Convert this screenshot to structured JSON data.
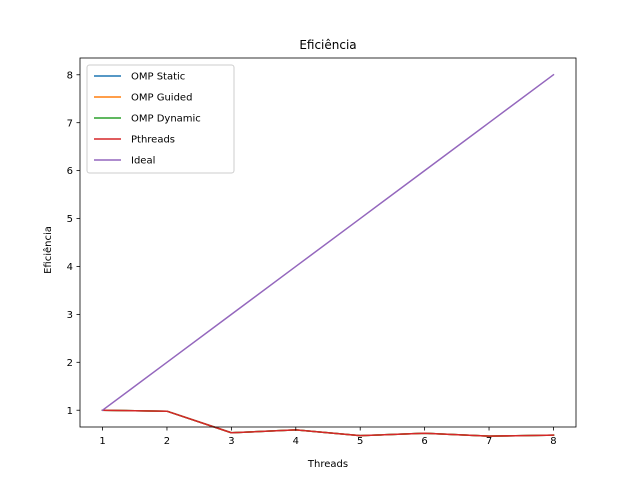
{
  "chart_data": {
    "type": "line",
    "title": "Eficiência",
    "xlabel": "Threads",
    "ylabel": "Eficiência",
    "x": [
      1,
      2,
      3,
      4,
      5,
      6,
      7,
      8
    ],
    "xticks": [
      "1",
      "2",
      "3",
      "4",
      "5",
      "6",
      "7",
      "8"
    ],
    "yticks": [
      "1",
      "2",
      "3",
      "4",
      "5",
      "6",
      "7",
      "8"
    ],
    "xlim": [
      0.65,
      8.35
    ],
    "ylim": [
      0.65,
      8.35
    ],
    "grid": false,
    "legend_position": "top-left",
    "series": [
      {
        "name": "OMP Static",
        "color": "#1f77b4",
        "values": [
          1.0,
          0.98,
          0.53,
          0.59,
          0.47,
          0.52,
          0.46,
          0.48
        ]
      },
      {
        "name": "OMP Guided",
        "color": "#ff7f0e",
        "values": [
          1.0,
          0.98,
          0.53,
          0.59,
          0.47,
          0.52,
          0.46,
          0.48
        ]
      },
      {
        "name": "OMP Dynamic",
        "color": "#2ca02c",
        "values": [
          1.0,
          0.98,
          0.53,
          0.59,
          0.47,
          0.52,
          0.46,
          0.48
        ]
      },
      {
        "name": "Pthreads",
        "color": "#d62728",
        "values": [
          1.0,
          0.98,
          0.53,
          0.59,
          0.47,
          0.52,
          0.46,
          0.48
        ]
      },
      {
        "name": "Ideal",
        "color": "#9467bd",
        "values": [
          1,
          2,
          3,
          4,
          5,
          6,
          7,
          8
        ]
      }
    ]
  }
}
